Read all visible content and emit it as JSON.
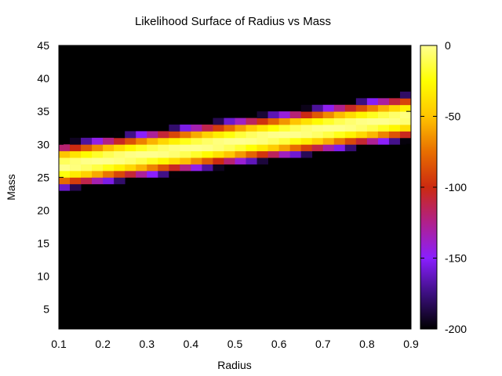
{
  "chart_data": {
    "type": "heatmap",
    "title": "Likelihood Surface of Radius vs Mass",
    "xlabel": "Radius",
    "ylabel": "Mass",
    "xlim": [
      0.1,
      0.9
    ],
    "ylim": [
      2,
      45
    ],
    "x_ticks": [
      "0.1",
      "0.2",
      "0.3",
      "0.4",
      "0.5",
      "0.6",
      "0.7",
      "0.8",
      "0.9"
    ],
    "y_ticks": [
      "5",
      "10",
      "15",
      "20",
      "25",
      "30",
      "35",
      "40",
      "45"
    ],
    "colorbar": {
      "range": [
        -200,
        0
      ],
      "ticks": [
        "0",
        "-50",
        "-100",
        "-150",
        "-200"
      ],
      "colors": [
        "#000000",
        "#3c0f80",
        "#8a1fff",
        "#b0208c",
        "#cc2a10",
        "#e86e00",
        "#ffc400",
        "#ffff00",
        "#ffff90"
      ]
    },
    "grid": false,
    "model": {
      "description_hidden": true,
      "ridge_mass_at_radius_0_1": 26.6,
      "ridge_slope_mass_per_radius": 9.5,
      "half_width_mass": 3.6,
      "x_bins": 32,
      "y_bins": 43
    }
  }
}
